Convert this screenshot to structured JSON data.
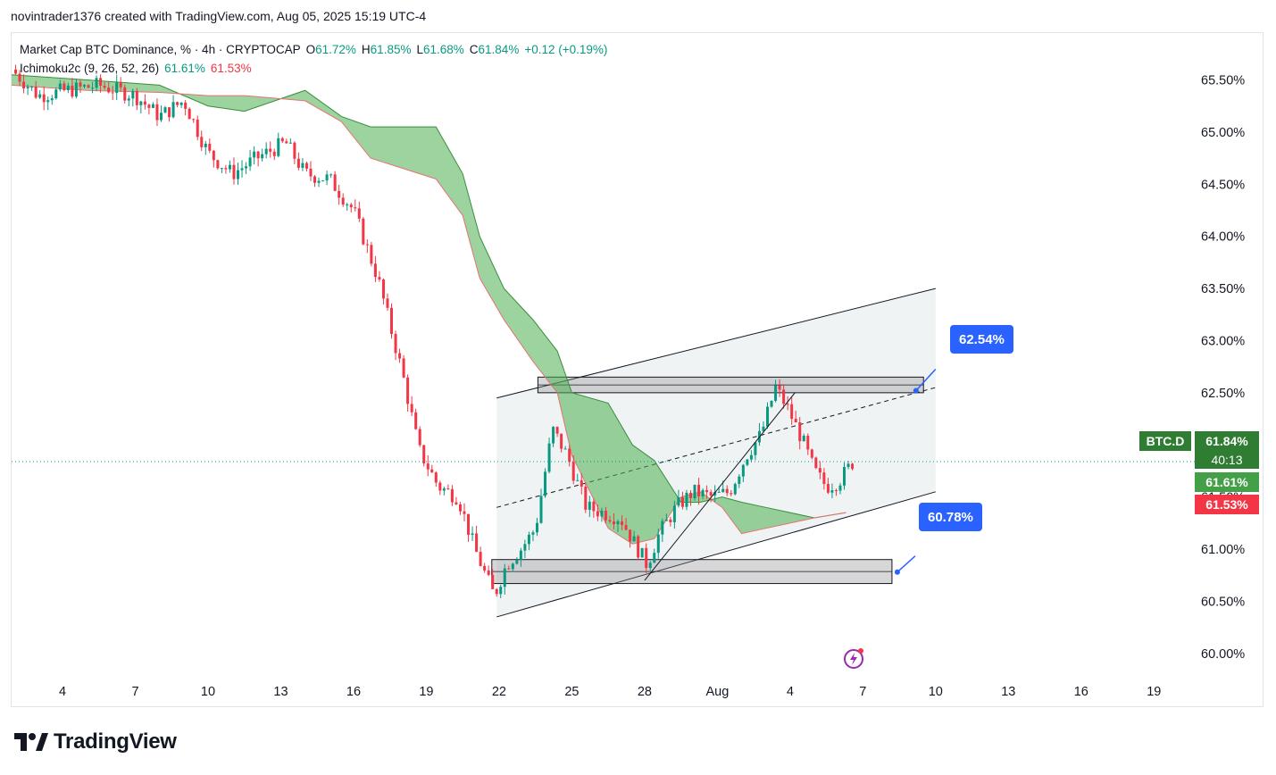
{
  "header": {
    "attribution": "novintrader1376 created with TradingView.com, Aug 05, 2025 15:19 UTC-4"
  },
  "legend": {
    "symbol_title": "Market Cap BTC Dominance, % · 4h · CRYPTOCAP",
    "ohlc": [
      {
        "label": "O",
        "value": "61.72%"
      },
      {
        "label": "H",
        "value": "61.85%"
      },
      {
        "label": "L",
        "value": "61.68%"
      },
      {
        "label": "C",
        "value": "61.84%"
      }
    ],
    "change": "+0.12 (+0.19%)",
    "indicator_name": "Ichimoku2c (9, 26, 52, 26)",
    "indicator_val1": "61.61%",
    "indicator_val2": "61.53%"
  },
  "price_tags": {
    "symbol": "BTC.D",
    "last": "61.84%",
    "countdown": "40:13",
    "span_a": "61.61%",
    "span_b": "61.53%"
  },
  "callouts": {
    "upper": "62.54%",
    "lower": "60.78%"
  },
  "colors": {
    "up": "#089981",
    "down": "#f23645",
    "cloud": "#4caf50",
    "callout": "#2962ff",
    "tag_green": "#43a047",
    "tag_dark_green": "#2e7d32"
  },
  "footer": {
    "brand": "TradingView"
  },
  "chart_data": {
    "type": "candlestick",
    "title": "Market Cap BTC Dominance, % · 4h · CRYPTOCAP",
    "ylim": [
      59.75,
      65.95
    ],
    "y_ticks": [
      "65.50%",
      "65.00%",
      "64.50%",
      "64.00%",
      "63.50%",
      "63.00%",
      "62.50%",
      "62.00%",
      "61.50%",
      "61.00%",
      "60.50%",
      "60.00%"
    ],
    "y_tick_values": [
      65.5,
      65.0,
      64.5,
      64.0,
      63.5,
      63.0,
      62.5,
      62.0,
      61.5,
      61.0,
      60.5,
      60.0
    ],
    "x_ticks": [
      {
        "label": "4",
        "day": 4
      },
      {
        "label": "7",
        "day": 7
      },
      {
        "label": "10",
        "day": 10
      },
      {
        "label": "13",
        "day": 13
      },
      {
        "label": "16",
        "day": 16
      },
      {
        "label": "19",
        "day": 19
      },
      {
        "label": "22",
        "day": 22
      },
      {
        "label": "25",
        "day": 25
      },
      {
        "label": "28",
        "day": 28
      },
      {
        "label": "Aug",
        "day": 31
      },
      {
        "label": "4",
        "day": 34
      },
      {
        "label": "7",
        "day": 37
      },
      {
        "label": "10",
        "day": 40
      },
      {
        "label": "13",
        "day": 43
      },
      {
        "label": "16",
        "day": 46
      },
      {
        "label": "19",
        "day": 49
      }
    ],
    "xlim_days": [
      1.9,
      50.5
    ],
    "price_path": [
      [
        1.9,
        65.6
      ],
      [
        3.0,
        65.35
      ],
      [
        4.2,
        65.4
      ],
      [
        5.5,
        65.45
      ],
      [
        7.0,
        65.35
      ],
      [
        8.0,
        65.15
      ],
      [
        9.0,
        65.3
      ],
      [
        10.0,
        64.8
      ],
      [
        11.0,
        64.6
      ],
      [
        12.0,
        64.75
      ],
      [
        13.2,
        64.9
      ],
      [
        14.0,
        64.6
      ],
      [
        15.0,
        64.55
      ],
      [
        16.0,
        64.25
      ],
      [
        17.0,
        63.6
      ],
      [
        18.0,
        62.7
      ],
      [
        18.7,
        61.95
      ],
      [
        19.5,
        61.6
      ],
      [
        20.3,
        61.5
      ],
      [
        21.0,
        61.0
      ],
      [
        21.8,
        60.55
      ],
      [
        22.3,
        60.85
      ],
      [
        22.9,
        61.0
      ],
      [
        23.5,
        61.2
      ],
      [
        24.2,
        62.15
      ],
      [
        24.8,
        61.9
      ],
      [
        25.6,
        61.4
      ],
      [
        26.3,
        61.35
      ],
      [
        27.0,
        61.3
      ],
      [
        27.6,
        61.05
      ],
      [
        28.1,
        60.85
      ],
      [
        28.6,
        61.15
      ],
      [
        29.3,
        61.4
      ],
      [
        30.0,
        61.55
      ],
      [
        30.8,
        61.5
      ],
      [
        31.5,
        61.55
      ],
      [
        32.2,
        61.9
      ],
      [
        32.8,
        62.1
      ],
      [
        33.4,
        62.55
      ],
      [
        33.9,
        62.35
      ],
      [
        34.5,
        62.05
      ],
      [
        35.0,
        61.75
      ],
      [
        35.5,
        61.6
      ],
      [
        36.0,
        61.65
      ],
      [
        36.6,
        61.84
      ]
    ],
    "cloud_upper": [
      [
        1.9,
        65.55
      ],
      [
        5.0,
        65.5
      ],
      [
        8.0,
        65.45
      ],
      [
        10.0,
        65.25
      ],
      [
        11.5,
        65.2
      ],
      [
        14.0,
        65.4
      ],
      [
        15.5,
        65.15
      ],
      [
        16.7,
        65.05
      ],
      [
        19.4,
        65.05
      ],
      [
        20.5,
        64.6
      ],
      [
        21.2,
        64.0
      ],
      [
        22.2,
        63.5
      ],
      [
        23.4,
        63.2
      ],
      [
        24.4,
        62.9
      ],
      [
        25.0,
        62.5
      ],
      [
        26.5,
        62.4
      ],
      [
        27.5,
        62.0
      ],
      [
        28.4,
        61.85
      ],
      [
        29.5,
        61.45
      ],
      [
        30.3,
        61.45
      ],
      [
        31.2,
        61.5
      ],
      [
        32.0,
        61.45
      ],
      [
        33.0,
        61.4
      ],
      [
        34.0,
        61.35
      ],
      [
        35.0,
        61.3
      ],
      [
        36.3,
        61.35
      ]
    ],
    "cloud_lower": [
      [
        1.9,
        65.45
      ],
      [
        5.0,
        65.4
      ],
      [
        8.0,
        65.38
      ],
      [
        10.0,
        65.35
      ],
      [
        11.5,
        65.35
      ],
      [
        14.0,
        65.3
      ],
      [
        15.5,
        65.1
      ],
      [
        16.7,
        64.75
      ],
      [
        19.4,
        64.55
      ],
      [
        20.5,
        64.2
      ],
      [
        21.2,
        63.6
      ],
      [
        22.2,
        63.2
      ],
      [
        23.4,
        62.8
      ],
      [
        24.4,
        62.5
      ],
      [
        25.0,
        61.9
      ],
      [
        26.5,
        61.2
      ],
      [
        27.5,
        61.05
      ],
      [
        28.4,
        61.1
      ],
      [
        29.5,
        61.5
      ],
      [
        30.3,
        61.55
      ],
      [
        31.2,
        61.4
      ],
      [
        32.0,
        61.15
      ],
      [
        33.0,
        61.2
      ],
      [
        34.0,
        61.25
      ],
      [
        35.0,
        61.3
      ],
      [
        36.3,
        61.35
      ]
    ],
    "channel_upper": [
      [
        21.9,
        62.45
      ],
      [
        40.0,
        63.5
      ]
    ],
    "channel_lower": [
      [
        21.9,
        60.35
      ],
      [
        40.0,
        61.55
      ]
    ],
    "channel_mid": [
      [
        21.9,
        61.4
      ],
      [
        40.0,
        62.55
      ]
    ],
    "trendline": [
      [
        28.0,
        60.7
      ],
      [
        34.2,
        62.5
      ]
    ],
    "resistance_zone": {
      "x": [
        23.6,
        39.5
      ],
      "y": [
        62.5,
        62.65
      ]
    },
    "support_zone": {
      "x": [
        21.7,
        38.2
      ],
      "y": [
        60.67,
        60.9
      ]
    },
    "last_price": 61.84,
    "span_a": 61.61,
    "span_b": 61.53
  }
}
